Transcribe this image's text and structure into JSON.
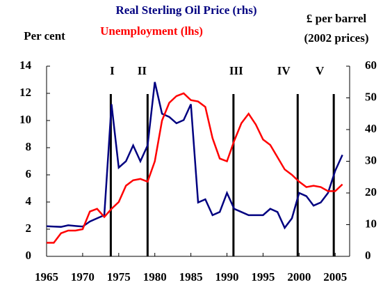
{
  "chart_data": {
    "type": "line",
    "title_lines": [
      "Real Sterling Oil Price (rhs)",
      "Unemployment (lhs)"
    ],
    "ylabel": "Per cent",
    "y2label_lines": [
      "£ per barrel",
      "(2002 prices)"
    ],
    "x": [
      1965,
      1966,
      1967,
      1968,
      1969,
      1970,
      1971,
      1972,
      1973,
      1974,
      1975,
      1976,
      1977,
      1978,
      1979,
      1980,
      1981,
      1982,
      1983,
      1984,
      1985,
      1986,
      1987,
      1988,
      1989,
      1990,
      1991,
      1992,
      1993,
      1994,
      1995,
      1996,
      1997,
      1998,
      1999,
      2000,
      2001,
      2002,
      2003,
      2004,
      2005,
      2006
    ],
    "series": [
      {
        "name": "Real Sterling Oil Price (rhs)",
        "color": "#000080",
        "axis": "y2",
        "values": [
          9.5,
          9.4,
          9.3,
          9.8,
          9.6,
          9.4,
          11,
          12,
          13,
          48,
          28,
          30,
          35,
          30,
          35,
          55,
          45,
          44,
          42,
          43,
          48,
          17,
          18,
          13,
          14,
          20,
          15,
          14,
          13,
          13,
          13,
          15,
          14,
          9,
          12,
          20,
          19,
          16,
          17,
          20,
          27,
          32
        ]
      },
      {
        "name": "Unemployment (lhs)",
        "color": "#ff0000",
        "values": [
          1.0,
          1.0,
          1.7,
          1.9,
          1.9,
          2.0,
          3.3,
          3.5,
          2.9,
          3.5,
          4.0,
          5.2,
          5.6,
          5.7,
          5.5,
          7.0,
          10.0,
          11.3,
          11.8,
          12.0,
          11.5,
          11.4,
          11.0,
          8.7,
          7.2,
          7.0,
          8.5,
          9.8,
          10.5,
          9.7,
          8.6,
          8.2,
          7.3,
          6.4,
          6.0,
          5.5,
          5.1,
          5.2,
          5.1,
          4.8,
          4.8,
          5.3
        ]
      }
    ],
    "annotations": [
      {
        "label": "I",
        "x": 1973.9
      },
      {
        "label": "II",
        "x": 1979
      },
      {
        "label": "III",
        "x": 1990.9
      },
      {
        "label": "IV",
        "x": 1999.8
      },
      {
        "label": "V",
        "x": 2004.8
      }
    ],
    "xlim": [
      1965,
      2007
    ],
    "xticks": [
      1965,
      1970,
      1975,
      1980,
      1985,
      1990,
      1995,
      2000,
      2005
    ],
    "ylim": [
      0,
      14
    ],
    "yticks": [
      0,
      2,
      4,
      6,
      8,
      10,
      12,
      14
    ],
    "y2lim": [
      0,
      60
    ],
    "y2ticks": [
      0,
      10,
      20,
      30,
      40,
      50,
      60
    ]
  }
}
